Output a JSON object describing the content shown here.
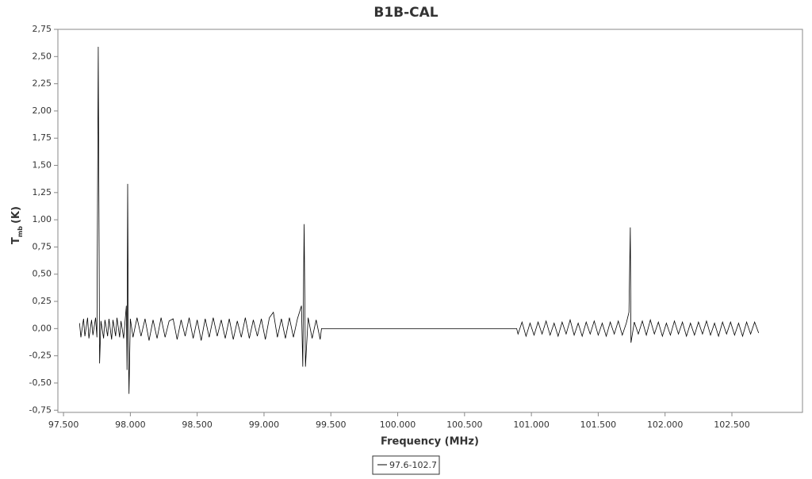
{
  "chart_data": {
    "type": "line",
    "title": "B1B-CAL",
    "xlabel": "Frequency (MHz)",
    "ylabel": [
      "T",
      "mb",
      "(K)"
    ],
    "xlim": [
      97.458,
      103.028
    ],
    "ylim": [
      -0.77,
      2.75
    ],
    "xticks": [
      {
        "value": 97.5,
        "label": "97.500"
      },
      {
        "value": 98,
        "label": "98.000"
      },
      {
        "value": 98.5,
        "label": "98.500"
      },
      {
        "value": 99,
        "label": "99.000"
      },
      {
        "value": 99.5,
        "label": "99.500"
      },
      {
        "value": 100,
        "label": "100.000"
      },
      {
        "value": 100.5,
        "label": "100.500"
      },
      {
        "value": 101,
        "label": "101.000"
      },
      {
        "value": 101.5,
        "label": "101.500"
      },
      {
        "value": 102,
        "label": "102.000"
      },
      {
        "value": 102.5,
        "label": "102.500"
      }
    ],
    "yticks": [
      {
        "value": -0.75,
        "label": "-0,75"
      },
      {
        "value": -0.5,
        "label": "-0,50"
      },
      {
        "value": -0.25,
        "label": "-0,25"
      },
      {
        "value": 0,
        "label": "0,00"
      },
      {
        "value": 0.25,
        "label": "0,25"
      },
      {
        "value": 0.5,
        "label": "0,50"
      },
      {
        "value": 0.75,
        "label": "0,75"
      },
      {
        "value": 1,
        "label": "1,00"
      },
      {
        "value": 1.25,
        "label": "1,25"
      },
      {
        "value": 1.5,
        "label": "1,50"
      },
      {
        "value": 1.75,
        "label": "1,75"
      },
      {
        "value": 2,
        "label": "2,00"
      },
      {
        "value": 2.25,
        "label": "2,25"
      },
      {
        "value": 2.5,
        "label": "2,50"
      },
      {
        "value": 2.75,
        "label": "2,75"
      }
    ],
    "x": [
      97.62,
      97.63,
      97.65,
      97.66,
      97.68,
      97.69,
      97.71,
      97.72,
      97.74,
      97.75,
      97.76,
      97.77,
      97.78,
      97.8,
      97.81,
      97.83,
      97.84,
      97.86,
      97.87,
      97.89,
      97.9,
      97.92,
      97.93,
      97.95,
      97.97,
      97.975,
      97.98,
      97.985,
      97.99,
      98.0,
      98.02,
      98.05,
      98.08,
      98.11,
      98.14,
      98.17,
      98.2,
      98.23,
      98.26,
      98.29,
      98.32,
      98.35,
      98.38,
      98.41,
      98.44,
      98.47,
      98.5,
      98.53,
      98.56,
      98.59,
      98.62,
      98.65,
      98.68,
      98.71,
      98.74,
      98.77,
      98.8,
      98.83,
      98.86,
      98.89,
      98.92,
      98.95,
      98.98,
      99.01,
      99.04,
      99.07,
      99.1,
      99.13,
      99.16,
      99.19,
      99.22,
      99.25,
      99.28,
      99.29,
      99.3,
      99.31,
      99.33,
      99.36,
      99.39,
      99.42,
      99.43,
      100.89,
      100.9,
      100.93,
      100.96,
      100.99,
      101.02,
      101.05,
      101.08,
      101.11,
      101.14,
      101.17,
      101.2,
      101.23,
      101.26,
      101.29,
      101.32,
      101.35,
      101.38,
      101.41,
      101.44,
      101.47,
      101.5,
      101.53,
      101.56,
      101.59,
      101.62,
      101.65,
      101.68,
      101.71,
      101.73,
      101.74,
      101.745,
      101.77,
      101.8,
      101.83,
      101.86,
      101.89,
      101.92,
      101.95,
      101.98,
      102.01,
      102.04,
      102.07,
      102.1,
      102.13,
      102.16,
      102.19,
      102.22,
      102.25,
      102.28,
      102.31,
      102.34,
      102.37,
      102.4,
      102.43,
      102.46,
      102.49,
      102.52,
      102.55,
      102.58,
      102.61,
      102.64,
      102.67,
      102.7
    ],
    "series": [
      {
        "name": "97.6-102.7",
        "color": "#000000",
        "values": [
          0.05,
          -0.08,
          0.09,
          -0.07,
          0.1,
          -0.09,
          0.08,
          -0.06,
          0.1,
          -0.08,
          2.59,
          -0.32,
          0.07,
          -0.09,
          0.08,
          -0.07,
          0.09,
          -0.1,
          0.08,
          -0.07,
          0.1,
          -0.08,
          0.07,
          -0.09,
          0.21,
          -0.38,
          1.33,
          -0.1,
          -0.6,
          0.09,
          -0.08,
          0.1,
          -0.07,
          0.09,
          -0.11,
          0.08,
          -0.09,
          0.1,
          -0.08,
          0.07,
          0.09,
          -0.1,
          0.08,
          -0.07,
          0.1,
          -0.09,
          0.08,
          -0.11,
          0.09,
          -0.08,
          0.1,
          -0.07,
          0.08,
          -0.09,
          0.09,
          -0.1,
          0.07,
          -0.08,
          0.1,
          -0.09,
          0.08,
          -0.07,
          0.09,
          -0.1,
          0.1,
          0.15,
          -0.08,
          0.09,
          -0.09,
          0.1,
          -0.08,
          0.09,
          0.21,
          -0.35,
          0.96,
          -0.35,
          0.1,
          -0.09,
          0.08,
          -0.1,
          0,
          0,
          -0.05,
          0.06,
          -0.07,
          0.05,
          -0.06,
          0.06,
          -0.05,
          0.07,
          -0.06,
          0.05,
          -0.07,
          0.06,
          -0.05,
          0.08,
          -0.06,
          0.05,
          -0.07,
          0.06,
          -0.05,
          0.07,
          -0.06,
          0.05,
          -0.07,
          0.06,
          -0.05,
          0.07,
          -0.06,
          0.05,
          0.15,
          0.93,
          -0.13,
          0.06,
          -0.05,
          0.07,
          -0.06,
          0.08,
          -0.05,
          0.06,
          -0.07,
          0.05,
          -0.06,
          0.07,
          -0.05,
          0.06,
          -0.07,
          0.05,
          -0.06,
          0.06,
          -0.05,
          0.07,
          -0.06,
          0.05,
          -0.07,
          0.06,
          -0.05,
          0.06,
          -0.06,
          0.05,
          -0.07,
          0.06,
          -0.05,
          0.06,
          -0.04
        ]
      }
    ]
  }
}
